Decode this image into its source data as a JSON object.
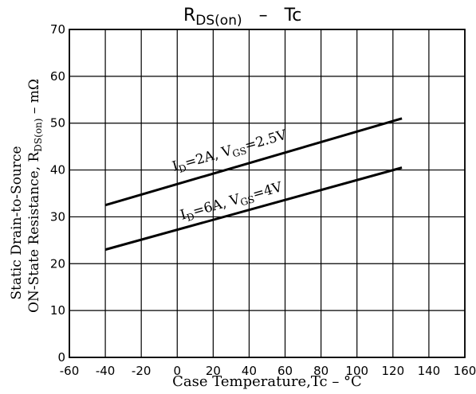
{
  "chart_data": {
    "type": "line",
    "title_main": "R",
    "title_sub": "DS(on)",
    "title_rest": "   –   Tc",
    "xlabel": "Case Temperature,Tc – °C",
    "ylabel_line1": "Static Drain-to-Source",
    "ylabel_line2": "ON-State Resistance, R",
    "ylabel_sub": "DS(on)",
    "ylabel_unit": " – mΩ",
    "xlim": [
      -60,
      160
    ],
    "ylim": [
      0,
      70
    ],
    "xticks": [
      "-60",
      "-40",
      "-20",
      "0",
      "20",
      "40",
      "60",
      "80",
      "100",
      "120",
      "140",
      "160"
    ],
    "yticks": [
      "0",
      "10",
      "20",
      "30",
      "40",
      "50",
      "60",
      "70"
    ],
    "grid": true,
    "series": [
      {
        "label_parts": [
          "I",
          "D",
          "=2A, V",
          "GS",
          "=2.5V"
        ],
        "x": [
          -40,
          125
        ],
        "y": [
          32.5,
          51
        ]
      },
      {
        "label_parts": [
          "I",
          "D",
          "=6A, V",
          "GS",
          "=4V"
        ],
        "x": [
          -40,
          125
        ],
        "y": [
          23,
          40.5
        ]
      }
    ]
  }
}
